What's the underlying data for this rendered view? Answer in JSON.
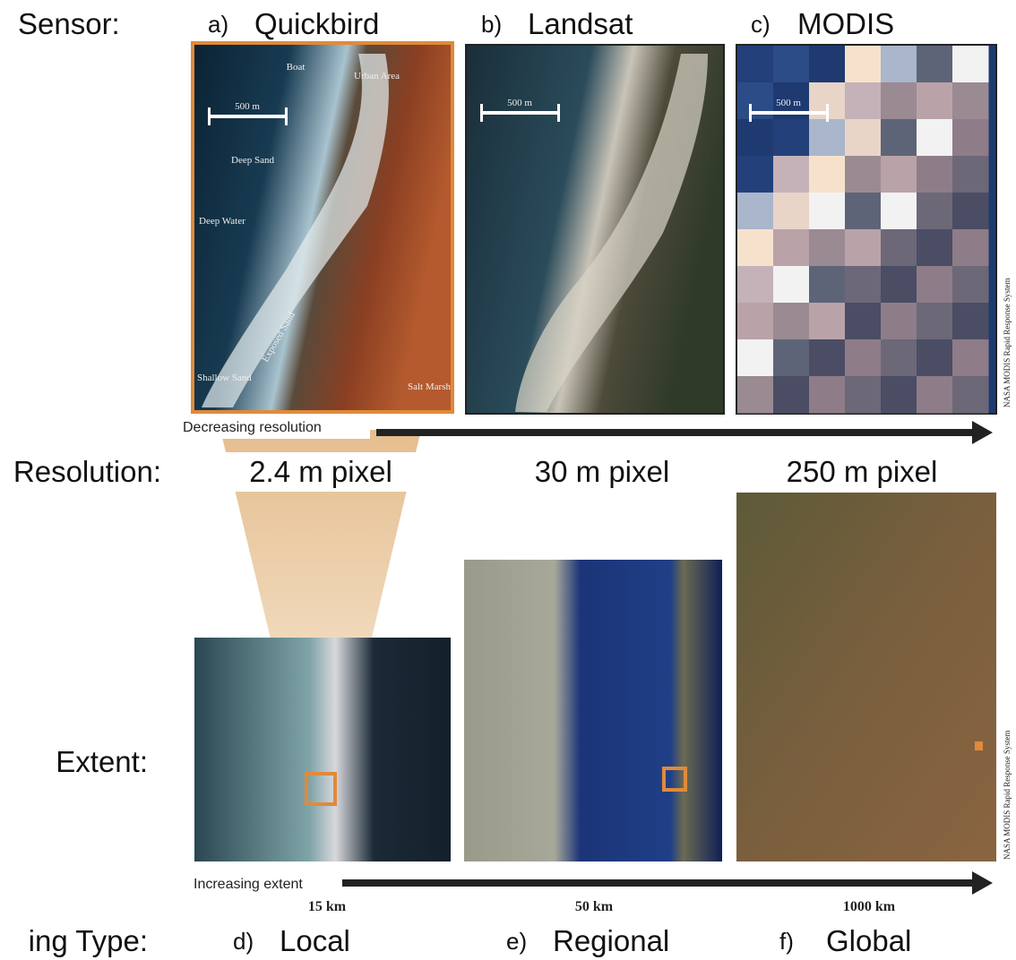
{
  "row_labels": {
    "sensor": "Sensor:",
    "resolution": "Resolution:",
    "extent": "Extent:",
    "mapping_type": "ing Type:"
  },
  "sensors": [
    {
      "letter": "a)",
      "name": "Quickbird",
      "resolution": "2.4 m pixel"
    },
    {
      "letter": "b)",
      "name": "Landsat",
      "resolution": "30 m pixel"
    },
    {
      "letter": "c)",
      "name": "MODIS",
      "resolution": "250 m pixel"
    }
  ],
  "quickbird_labels": {
    "boat": "Boat",
    "urban": "Urban Area",
    "deep_sand": "Deep Sand",
    "deep_water": "Deep Water",
    "exposed_sand": "Exposed Sand",
    "shallow_sand": "Shallow Sand",
    "salt_marsh": "Salt Marsh"
  },
  "scale_bar": "500 m",
  "credit": "NASA MODIS Rapid Response System",
  "arrows": {
    "resolution": "Decreasing resolution",
    "extent": "Increasing extent"
  },
  "extents": [
    {
      "size": "15 km",
      "letter": "d)",
      "name": "Local"
    },
    {
      "size": "50 km",
      "letter": "e)",
      "name": "Regional"
    },
    {
      "size": "1000 km",
      "letter": "f)",
      "name": "Global"
    }
  ]
}
